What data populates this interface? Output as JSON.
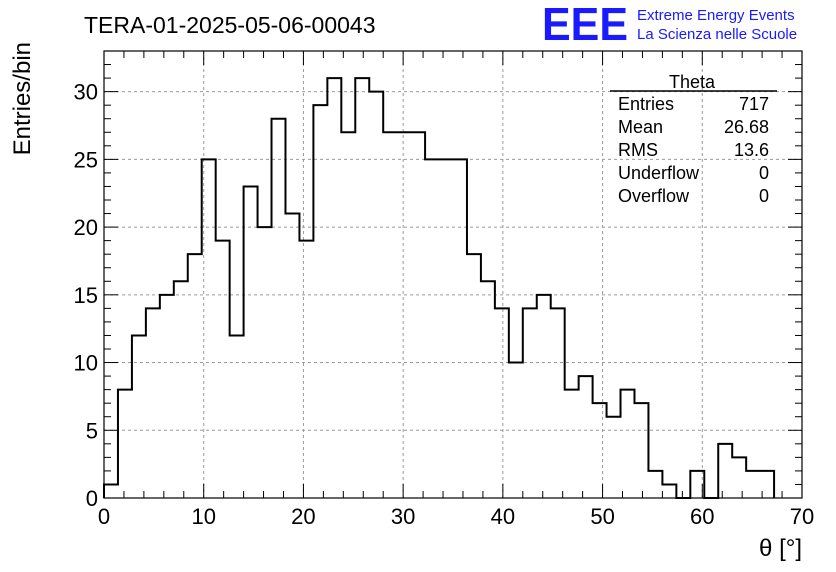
{
  "chart_data": {
    "type": "histogram",
    "title": "TERA-01-2025-05-06-00043",
    "xlabel": "θ [°]",
    "ylabel": "Entries/bin",
    "xlim": [
      0,
      70
    ],
    "ylim": [
      0,
      33
    ],
    "grid": true,
    "x_ticks": [
      0,
      10,
      20,
      30,
      40,
      50,
      60,
      70
    ],
    "y_ticks": [
      0,
      5,
      10,
      15,
      20,
      25,
      30
    ],
    "x_tick_labels": [
      "0",
      "10",
      "20",
      "30",
      "40",
      "50",
      "60",
      "70"
    ],
    "y_tick_labels": [
      "0",
      "5",
      "10",
      "15",
      "20",
      "25",
      "30"
    ],
    "bin_width": 1.4,
    "bin_start": 0,
    "values": [
      1,
      8,
      12,
      14,
      15,
      16,
      18,
      25,
      19,
      12,
      23,
      20,
      28,
      21,
      19,
      29,
      31,
      27,
      31,
      30,
      27,
      27,
      27,
      25,
      25,
      25,
      18,
      16,
      14,
      10,
      14,
      15,
      14,
      8,
      9,
      7,
      6,
      8,
      7,
      2,
      1,
      0,
      2,
      0,
      4,
      3,
      2,
      2
    ],
    "stats_box": {
      "title": "Theta",
      "rows": [
        {
          "label": "Entries",
          "value": "717"
        },
        {
          "label": "Mean",
          "value": "26.68"
        },
        {
          "label": "RMS",
          "value": "13.6"
        },
        {
          "label": "Underflow",
          "value": "0"
        },
        {
          "label": "Overflow",
          "value": "0"
        }
      ]
    }
  },
  "logo": {
    "mark": "EEE",
    "line1": "Extreme Energy Events",
    "line2": "La Scienza nelle Scuole",
    "color": "#1a1aff"
  }
}
